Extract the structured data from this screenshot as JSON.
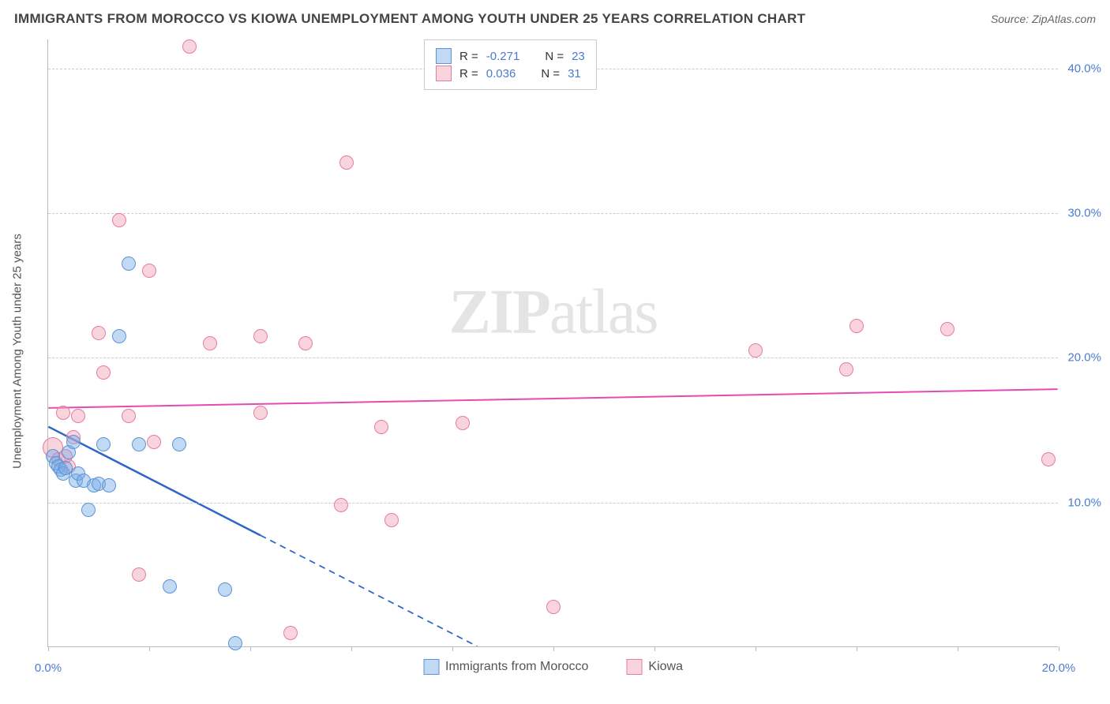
{
  "header": {
    "title": "IMMIGRANTS FROM MOROCCO VS KIOWA UNEMPLOYMENT AMONG YOUTH UNDER 25 YEARS CORRELATION CHART",
    "source": "Source: ZipAtlas.com"
  },
  "chart": {
    "type": "scatter",
    "watermark": "ZIPatlas",
    "y_axis_label": "Unemployment Among Youth under 25 years",
    "xlim": [
      0,
      20
    ],
    "ylim": [
      0,
      42
    ],
    "x_ticks": [
      0,
      2,
      4,
      6,
      8,
      10,
      12,
      14,
      16,
      18,
      20
    ],
    "x_tick_labels": {
      "0": "0.0%",
      "20": "20.0%"
    },
    "y_ticks": [
      10,
      20,
      30,
      40
    ],
    "y_tick_labels": {
      "10": "10.0%",
      "20": "20.0%",
      "30": "30.0%",
      "40": "40.0%"
    },
    "grid_color": "#cccccc",
    "background_color": "#ffffff",
    "axis_color": "#bbbbbb",
    "label_color": "#4a7bd0",
    "title_fontsize": 17,
    "label_fontsize": 15,
    "series": {
      "morocco": {
        "label": "Immigrants from Morocco",
        "fill": "rgba(120,170,230,0.45)",
        "stroke": "#5b94d6",
        "marker_size": 18,
        "R": "-0.271",
        "N": "23",
        "trend": {
          "x1": 0,
          "y1": 15.2,
          "x2": 8.5,
          "y2": 0,
          "color": "#2d66c7",
          "width": 2.5,
          "dash_after_x": 4.2
        },
        "points": [
          {
            "x": 0.1,
            "y": 13.2
          },
          {
            "x": 0.15,
            "y": 12.7
          },
          {
            "x": 0.2,
            "y": 12.5
          },
          {
            "x": 0.25,
            "y": 12.3
          },
          {
            "x": 0.3,
            "y": 12.0
          },
          {
            "x": 0.35,
            "y": 12.4
          },
          {
            "x": 0.4,
            "y": 13.5
          },
          {
            "x": 0.5,
            "y": 14.2
          },
          {
            "x": 0.55,
            "y": 11.5
          },
          {
            "x": 0.6,
            "y": 12.0
          },
          {
            "x": 0.7,
            "y": 11.5
          },
          {
            "x": 0.8,
            "y": 9.5
          },
          {
            "x": 0.9,
            "y": 11.2
          },
          {
            "x": 1.0,
            "y": 11.3
          },
          {
            "x": 1.1,
            "y": 14.0
          },
          {
            "x": 1.2,
            "y": 11.2
          },
          {
            "x": 1.4,
            "y": 21.5
          },
          {
            "x": 1.6,
            "y": 26.5
          },
          {
            "x": 1.8,
            "y": 14.0
          },
          {
            "x": 2.4,
            "y": 4.2
          },
          {
            "x": 2.6,
            "y": 14.0
          },
          {
            "x": 3.5,
            "y": 4.0
          },
          {
            "x": 3.7,
            "y": 0.3
          }
        ]
      },
      "kiowa": {
        "label": "Kiowa",
        "fill": "rgba(240,160,180,0.45)",
        "stroke": "#e87ba0",
        "marker_size": 18,
        "R": "0.036",
        "N": "31",
        "trend": {
          "x1": 0,
          "y1": 16.5,
          "x2": 20,
          "y2": 17.8,
          "color": "#e74bb1",
          "width": 2,
          "dash_after_x": 20
        },
        "points": [
          {
            "x": 0.1,
            "y": 13.8,
            "r": 26
          },
          {
            "x": 0.2,
            "y": 13.0
          },
          {
            "x": 0.3,
            "y": 16.2
          },
          {
            "x": 0.4,
            "y": 12.5
          },
          {
            "x": 0.6,
            "y": 16.0
          },
          {
            "x": 1.0,
            "y": 21.7
          },
          {
            "x": 1.1,
            "y": 19.0
          },
          {
            "x": 1.4,
            "y": 29.5
          },
          {
            "x": 1.6,
            "y": 16.0
          },
          {
            "x": 1.8,
            "y": 5.0
          },
          {
            "x": 2.0,
            "y": 26.0
          },
          {
            "x": 2.1,
            "y": 14.2
          },
          {
            "x": 2.8,
            "y": 41.5
          },
          {
            "x": 3.2,
            "y": 21.0
          },
          {
            "x": 4.2,
            "y": 16.2
          },
          {
            "x": 4.2,
            "y": 21.5
          },
          {
            "x": 4.8,
            "y": 1.0
          },
          {
            "x": 5.1,
            "y": 21.0
          },
          {
            "x": 5.8,
            "y": 9.8
          },
          {
            "x": 5.9,
            "y": 33.5
          },
          {
            "x": 6.6,
            "y": 15.2
          },
          {
            "x": 6.8,
            "y": 8.8
          },
          {
            "x": 8.2,
            "y": 15.5
          },
          {
            "x": 10.0,
            "y": 2.8
          },
          {
            "x": 14.0,
            "y": 20.5
          },
          {
            "x": 15.8,
            "y": 19.2
          },
          {
            "x": 16.0,
            "y": 22.2
          },
          {
            "x": 17.8,
            "y": 22.0
          },
          {
            "x": 19.8,
            "y": 13.0
          },
          {
            "x": 0.35,
            "y": 13.2
          },
          {
            "x": 0.5,
            "y": 14.5
          }
        ]
      }
    },
    "legend_top": {
      "r_label": "R =",
      "n_label": "N ="
    },
    "legend_bottom": {}
  }
}
